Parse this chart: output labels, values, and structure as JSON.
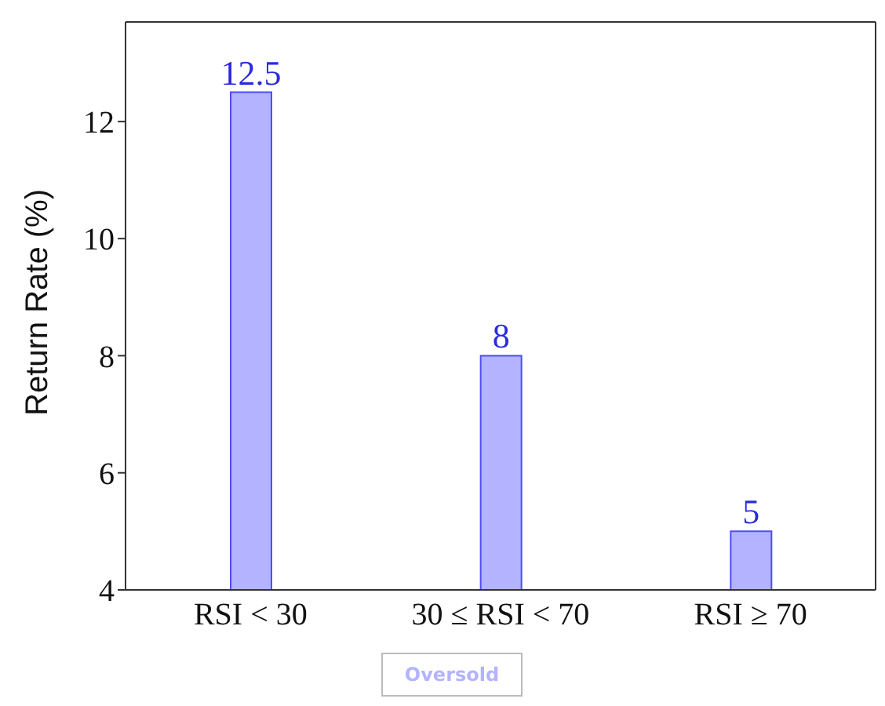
{
  "chart_data": {
    "type": "bar",
    "ylabel": "Return Rate (%)",
    "categories": [
      "RSI < 30",
      "30 ≤ RSI < 70",
      "RSI ≥ 70"
    ],
    "series": [
      {
        "name": "Oversold",
        "color": "#b3b3ff",
        "values": [
          12.5,
          8,
          5
        ]
      }
    ],
    "ylim": [
      4,
      13.7
    ],
    "yticks": [
      4,
      6,
      8,
      10,
      12
    ],
    "data_labels": true,
    "legend": "bottom",
    "grid": false
  }
}
